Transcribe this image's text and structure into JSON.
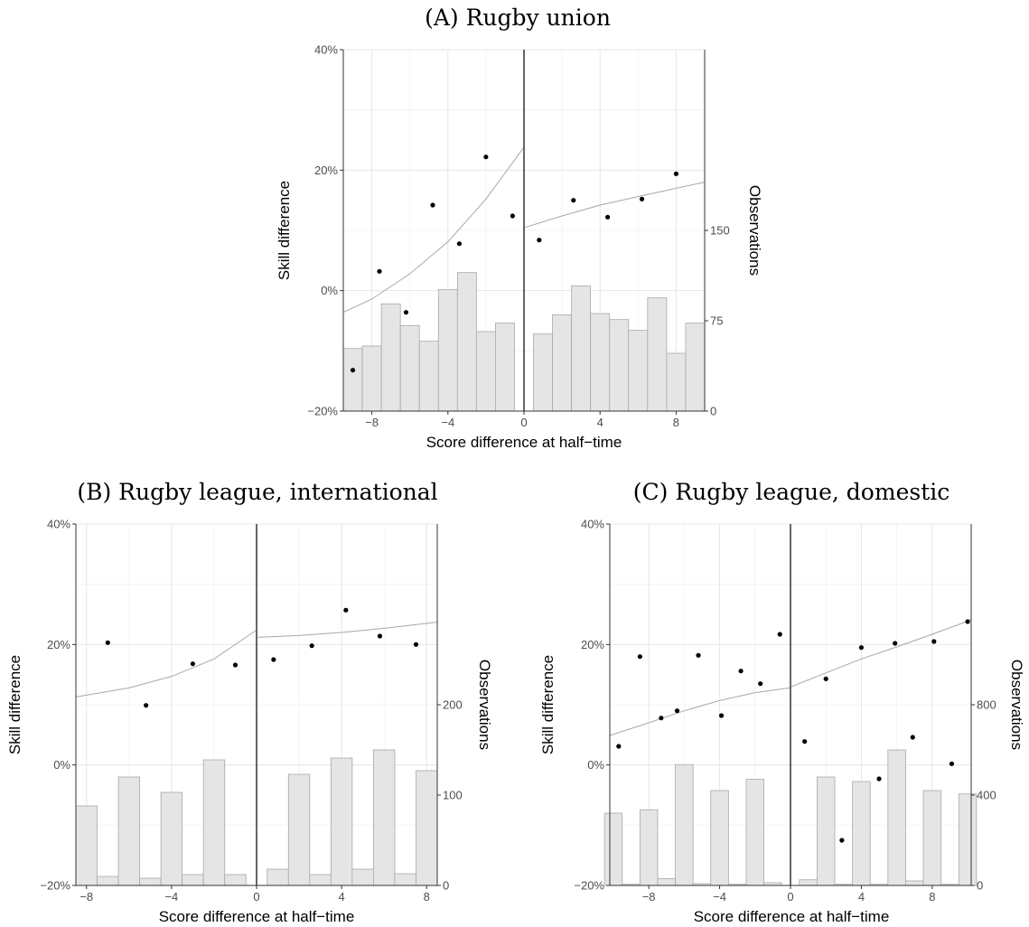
{
  "chart_data": [
    {
      "type": "scatter",
      "panel": "A",
      "title": "(A) Rugby union",
      "xlabel": "Score difference at half−time",
      "ylabel": "Skill difference",
      "y2label": "Observations",
      "xlim": [
        -9.5,
        9.5
      ],
      "ylim": [
        -20,
        40
      ],
      "y2lim": [
        0,
        300
      ],
      "x_ticks": [
        -8,
        -4,
        0,
        4,
        8
      ],
      "x_tick_labels": [
        "−8",
        "−4",
        "0",
        "4",
        "8"
      ],
      "y_ticks": [
        -20,
        0,
        20,
        40
      ],
      "y_tick_labels": [
        "−20%",
        "0%",
        "20%",
        "40%"
      ],
      "y2_ticks": [
        0,
        75,
        150
      ],
      "y2_tick_labels": [
        "0",
        "75",
        "150"
      ],
      "grid": true,
      "cutoff": 0,
      "points": {
        "x": [
          -9,
          -7.6,
          -6.2,
          -4.8,
          -3.4,
          -2,
          -0.6,
          0.8,
          2.6,
          4.4,
          6.2,
          8
        ],
        "y": [
          -13.2,
          3.2,
          -3.6,
          14.2,
          7.8,
          22.2,
          12.4,
          8.4,
          15,
          12.2,
          15.2,
          19.4
        ]
      },
      "bars": {
        "centers": [
          -9,
          -8,
          -7,
          -6,
          -5,
          -4,
          -3,
          -2,
          -1,
          1,
          2,
          3,
          4,
          5,
          6,
          7,
          8,
          9
        ],
        "counts": [
          52,
          54,
          89,
          71,
          58,
          101,
          115,
          66,
          73,
          64,
          80,
          104,
          81,
          76,
          67,
          94,
          48,
          73
        ],
        "width": 1
      },
      "fit_left": {
        "x": [
          -9.5,
          -8,
          -6,
          -4,
          -2,
          -0.05
        ],
        "y": [
          -3.6,
          -1.4,
          2.8,
          8.1,
          15.2,
          23.6
        ]
      },
      "fit_right": {
        "x": [
          0.05,
          2,
          4,
          6,
          8,
          9.5
        ],
        "y": [
          10.5,
          12.4,
          14.2,
          15.6,
          17,
          18
        ]
      }
    },
    {
      "type": "scatter",
      "panel": "B",
      "title": "(B) Rugby league, international",
      "xlabel": "Score difference at half−time",
      "ylabel": "Skill difference",
      "y2label": "Observations",
      "xlim": [
        -8.5,
        8.5
      ],
      "ylim": [
        -20,
        40
      ],
      "y2lim": [
        0,
        400
      ],
      "x_ticks": [
        -8,
        -4,
        0,
        4,
        8
      ],
      "x_tick_labels": [
        "−8",
        "−4",
        "0",
        "4",
        "8"
      ],
      "y_ticks": [
        -20,
        0,
        20,
        40
      ],
      "y_tick_labels": [
        "−20%",
        "0%",
        "20%",
        "40%"
      ],
      "y2_ticks": [
        0,
        100,
        200
      ],
      "y2_tick_labels": [
        "0",
        "100",
        "200"
      ],
      "grid": true,
      "cutoff": 0,
      "points": {
        "x": [
          -7,
          -5.2,
          -3,
          -1,
          0.8,
          2.6,
          4.2,
          5.8,
          7.5
        ],
        "y": [
          20.3,
          9.9,
          16.8,
          16.6,
          17.5,
          19.8,
          25.7,
          21.4,
          20
        ]
      },
      "bars": {
        "centers": [
          -8,
          -7,
          -6,
          -5,
          -4,
          -3,
          -2,
          -1,
          1,
          2,
          3,
          4,
          5,
          6,
          7,
          8
        ],
        "counts": [
          88,
          10,
          120,
          8,
          103,
          12,
          139,
          12,
          18,
          123,
          12,
          141,
          18,
          150,
          13,
          127
        ],
        "width": 1
      },
      "fit_left": {
        "x": [
          -8.5,
          -6,
          -4,
          -2,
          -0.05
        ],
        "y": [
          11.3,
          12.8,
          14.7,
          17.6,
          22.3
        ]
      },
      "fit_right": {
        "x": [
          0.05,
          2,
          4,
          6,
          8.5
        ],
        "y": [
          21.2,
          21.5,
          22,
          22.7,
          23.7
        ]
      }
    },
    {
      "type": "scatter",
      "panel": "C",
      "title": "(C) Rugby league, domestic",
      "xlabel": "Score difference at half−time",
      "ylabel": "Skill difference",
      "y2label": "Observations",
      "xlim": [
        -10.2,
        10.2
      ],
      "ylim": [
        -20,
        40
      ],
      "y2lim": [
        0,
        1600
      ],
      "x_ticks": [
        -8,
        -4,
        0,
        4,
        8
      ],
      "x_tick_labels": [
        "−8",
        "−4",
        "0",
        "4",
        "8"
      ],
      "y_ticks": [
        -20,
        0,
        20,
        40
      ],
      "y_tick_labels": [
        "−20%",
        "0%",
        "20%",
        "40%"
      ],
      "y2_ticks": [
        0,
        400,
        800
      ],
      "y2_tick_labels": [
        "0",
        "400",
        "800"
      ],
      "grid": true,
      "cutoff": 0,
      "points": {
        "x": [
          -9.7,
          -8.5,
          -7.3,
          -6.4,
          -5.2,
          -3.9,
          -2.8,
          -1.7,
          -0.6,
          0.8,
          2,
          2.9,
          4,
          5,
          5.9,
          6.9,
          8.1,
          9.1,
          10
        ],
        "y": [
          3.1,
          18,
          7.8,
          9,
          18.2,
          8.2,
          15.6,
          13.5,
          21.7,
          3.9,
          14.3,
          -12.5,
          19.5,
          -2.3,
          20.2,
          4.6,
          20.5,
          0.2,
          23.8
        ]
      },
      "bars": {
        "centers": [
          -10,
          -9,
          -8,
          -7,
          -6,
          -5,
          -4,
          -3,
          -2,
          -1,
          1,
          2,
          3,
          4,
          5,
          6,
          7,
          8,
          9,
          10
        ],
        "counts": [
          320,
          5,
          335,
          30,
          535,
          8,
          420,
          5,
          470,
          12,
          25,
          480,
          5,
          460,
          5,
          600,
          20,
          420,
          5,
          405
        ],
        "width": 1
      },
      "fit_left": {
        "x": [
          -10.2,
          -8,
          -6,
          -4,
          -2,
          -0.05
        ],
        "y": [
          4.9,
          7,
          9,
          10.7,
          12,
          12.8
        ]
      },
      "fit_right": {
        "x": [
          0.05,
          2,
          4,
          6,
          8,
          10.2
        ],
        "y": [
          13,
          15.3,
          17.6,
          19.6,
          21.7,
          24.1
        ]
      }
    }
  ]
}
